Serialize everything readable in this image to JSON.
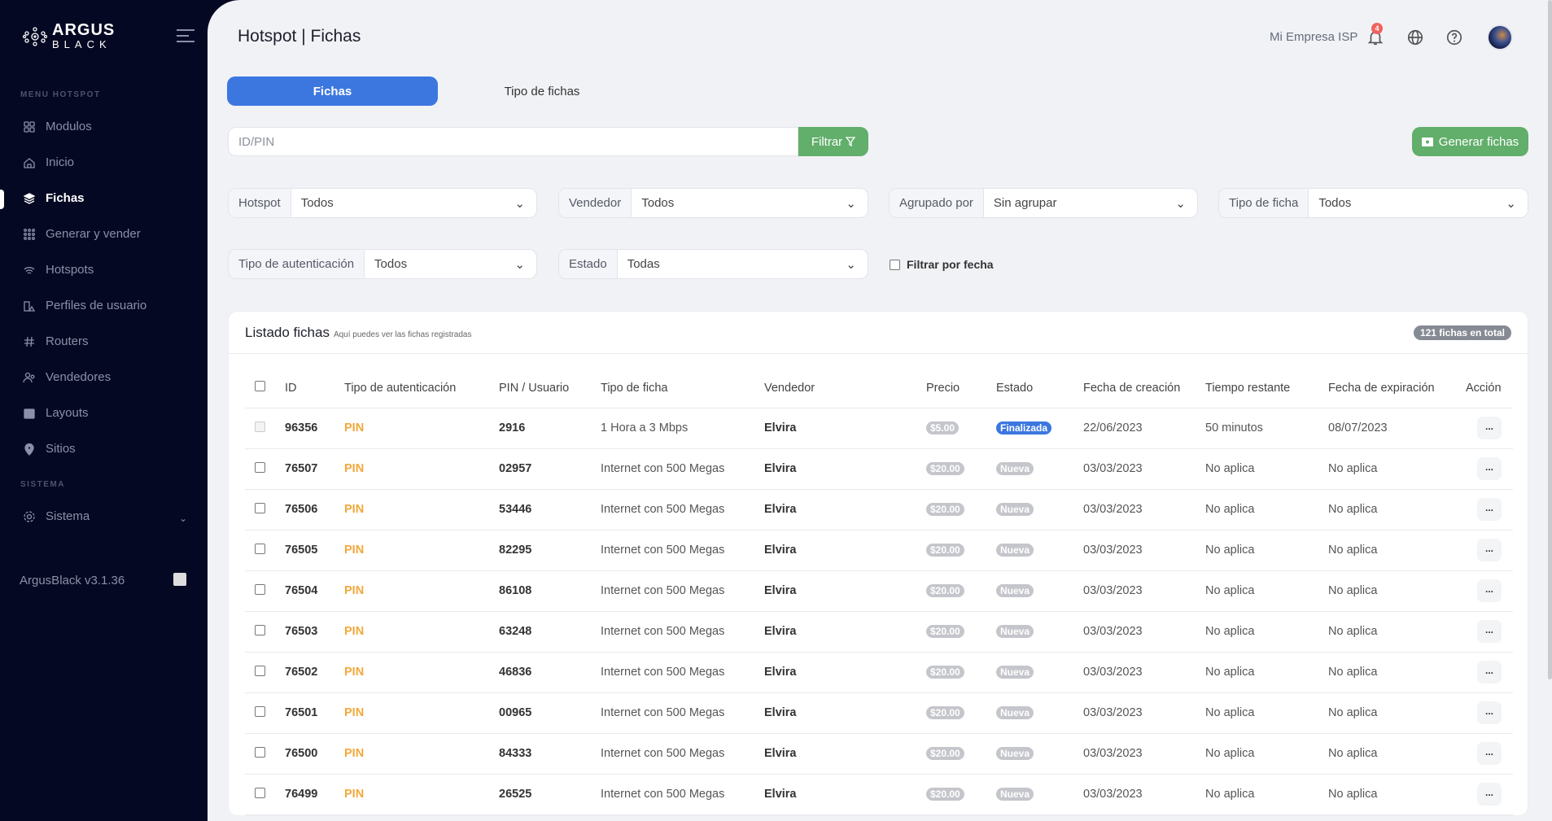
{
  "brand": {
    "line1": "ARGUS",
    "line2": "BLACK"
  },
  "sidebar": {
    "section_menu": "MENU HOTSPOT",
    "items": [
      {
        "label": "Modulos",
        "icon": "grid-icon"
      },
      {
        "label": "Inicio",
        "icon": "home-icon"
      },
      {
        "label": "Fichas",
        "icon": "layers-icon",
        "active": true
      },
      {
        "label": "Generar y vender",
        "icon": "dots-grid-icon"
      },
      {
        "label": "Hotspots",
        "icon": "wifi-icon"
      },
      {
        "label": "Perfiles de usuario",
        "icon": "profiles-icon"
      },
      {
        "label": "Routers",
        "icon": "hash-icon"
      },
      {
        "label": "Vendedores",
        "icon": "users-icon"
      },
      {
        "label": "Layouts",
        "icon": "layout-icon"
      },
      {
        "label": "Sitios",
        "icon": "map-pin-icon"
      }
    ],
    "section_system": "SISTEMA",
    "system": {
      "label": "Sistema",
      "icon": "gear-icon"
    },
    "version": "ArgusBlack v3.1.36"
  },
  "header": {
    "title": "Hotspot | Fichas",
    "company": "Mi Empresa ISP",
    "notifications": "4"
  },
  "tabs": [
    {
      "label": "Fichas",
      "active": true
    },
    {
      "label": "Tipo de fichas"
    }
  ],
  "search": {
    "placeholder": "ID/PIN",
    "filter_label": "Filtrar",
    "generate_label": "Generar fichas"
  },
  "filters": {
    "hotspot": {
      "label": "Hotspot",
      "value": "Todos"
    },
    "vendedor": {
      "label": "Vendedor",
      "value": "Todos"
    },
    "agrupado": {
      "label": "Agrupado por",
      "value": "Sin agrupar"
    },
    "tipo_ficha": {
      "label": "Tipo de ficha",
      "value": "Todos"
    },
    "tipo_auth": {
      "label": "Tipo de autenticación",
      "value": "Todos"
    },
    "estado": {
      "label": "Estado",
      "value": "Todas"
    },
    "fecha": {
      "label": "Filtrar por fecha",
      "checked": false
    }
  },
  "list": {
    "title": "Listado fichas",
    "subtitle": "Aquí puedes ver las fichas registradas",
    "total": "121 fichas en total",
    "columns": [
      "ID",
      "Tipo de autenticación",
      "PIN / Usuario",
      "Tipo de ficha",
      "Vendedor",
      "Precio",
      "Estado",
      "Fecha de creación",
      "Tiempo restante",
      "Fecha de expiración",
      "Acción"
    ],
    "action_label": "...",
    "rows": [
      {
        "id": "96356",
        "auth": "PIN",
        "pin": "2916",
        "tipo": "1 Hora a 3 Mbps",
        "vendedor": "Elvira",
        "precio": "$5.00",
        "estado": "Finalizada",
        "creacion": "22/06/2023",
        "restante": "50 minutos",
        "expiracion": "08/07/2023"
      },
      {
        "id": "76507",
        "auth": "PIN",
        "pin": "02957",
        "tipo": "Internet con 500 Megas",
        "vendedor": "Elvira",
        "precio": "$20.00",
        "estado": "Nueva",
        "creacion": "03/03/2023",
        "restante": "No aplica",
        "expiracion": "No aplica"
      },
      {
        "id": "76506",
        "auth": "PIN",
        "pin": "53446",
        "tipo": "Internet con 500 Megas",
        "vendedor": "Elvira",
        "precio": "$20.00",
        "estado": "Nueva",
        "creacion": "03/03/2023",
        "restante": "No aplica",
        "expiracion": "No aplica"
      },
      {
        "id": "76505",
        "auth": "PIN",
        "pin": "82295",
        "tipo": "Internet con 500 Megas",
        "vendedor": "Elvira",
        "precio": "$20.00",
        "estado": "Nueva",
        "creacion": "03/03/2023",
        "restante": "No aplica",
        "expiracion": "No aplica"
      },
      {
        "id": "76504",
        "auth": "PIN",
        "pin": "86108",
        "tipo": "Internet con 500 Megas",
        "vendedor": "Elvira",
        "precio": "$20.00",
        "estado": "Nueva",
        "creacion": "03/03/2023",
        "restante": "No aplica",
        "expiracion": "No aplica"
      },
      {
        "id": "76503",
        "auth": "PIN",
        "pin": "63248",
        "tipo": "Internet con 500 Megas",
        "vendedor": "Elvira",
        "precio": "$20.00",
        "estado": "Nueva",
        "creacion": "03/03/2023",
        "restante": "No aplica",
        "expiracion": "No aplica"
      },
      {
        "id": "76502",
        "auth": "PIN",
        "pin": "46836",
        "tipo": "Internet con 500 Megas",
        "vendedor": "Elvira",
        "precio": "$20.00",
        "estado": "Nueva",
        "creacion": "03/03/2023",
        "restante": "No aplica",
        "expiracion": "No aplica"
      },
      {
        "id": "76501",
        "auth": "PIN",
        "pin": "00965",
        "tipo": "Internet con 500 Megas",
        "vendedor": "Elvira",
        "precio": "$20.00",
        "estado": "Nueva",
        "creacion": "03/03/2023",
        "restante": "No aplica",
        "expiracion": "No aplica"
      },
      {
        "id": "76500",
        "auth": "PIN",
        "pin": "84333",
        "tipo": "Internet con 500 Megas",
        "vendedor": "Elvira",
        "precio": "$20.00",
        "estado": "Nueva",
        "creacion": "03/03/2023",
        "restante": "No aplica",
        "expiracion": "No aplica"
      },
      {
        "id": "76499",
        "auth": "PIN",
        "pin": "26525",
        "tipo": "Internet con 500 Megas",
        "vendedor": "Elvira",
        "precio": "$20.00",
        "estado": "Nueva",
        "creacion": "03/03/2023",
        "restante": "No aplica",
        "expiracion": "No aplica"
      }
    ]
  },
  "colors": {
    "sidebar": "#050822",
    "primary": "#3c77e0",
    "success": "#62ae6b",
    "pin": "#f3a83b"
  }
}
